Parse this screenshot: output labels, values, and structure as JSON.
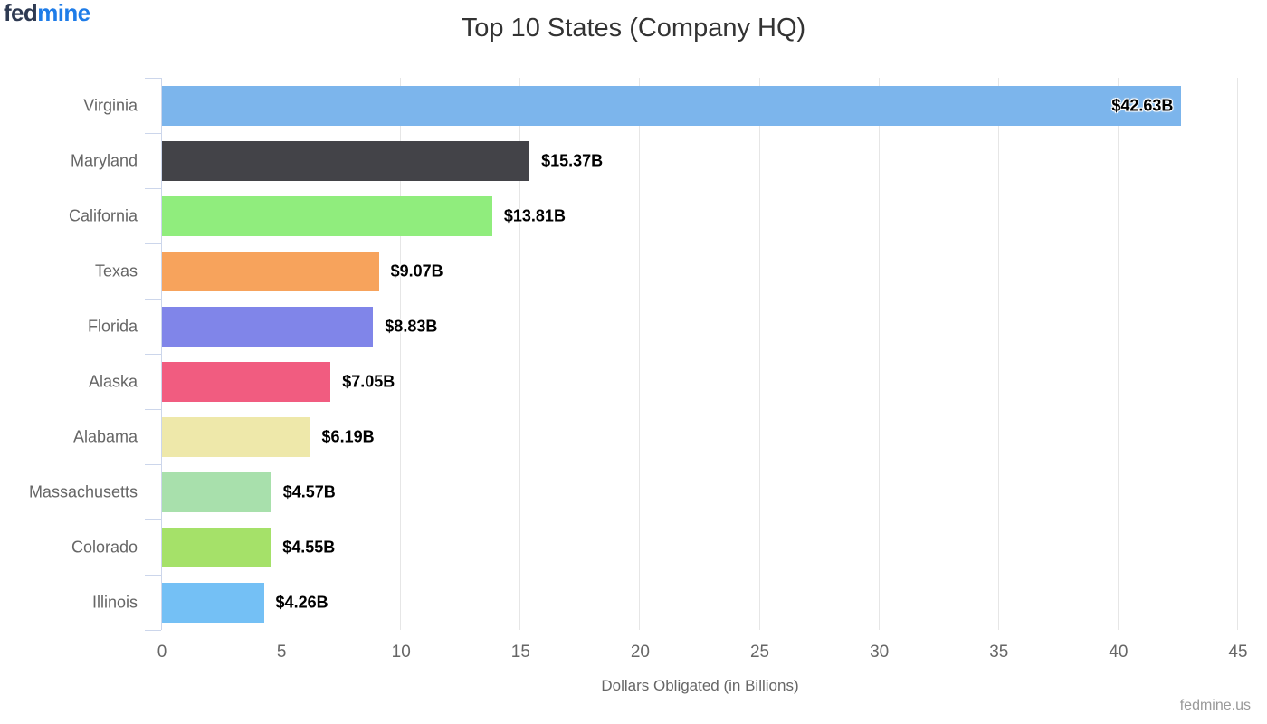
{
  "brand": {
    "part1": "fed",
    "part2": "mine",
    "part1_color": "#2e3a52",
    "part2_color": "#1e7ce8"
  },
  "chart_data": {
    "type": "bar",
    "orientation": "horizontal",
    "title": "Top 10 States (Company HQ)",
    "categories": [
      "Virginia",
      "Maryland",
      "California",
      "Texas",
      "Florida",
      "Alaska",
      "Alabama",
      "Massachusetts",
      "Colorado",
      "Illinois"
    ],
    "values": [
      42.63,
      15.37,
      13.81,
      9.07,
      8.83,
      7.05,
      6.19,
      4.57,
      4.55,
      4.26
    ],
    "value_labels": [
      "$42.63B",
      "$15.37B",
      "$13.81B",
      "$9.07B",
      "$8.83B",
      "$7.05B",
      "$6.19B",
      "$4.57B",
      "$4.55B",
      "$4.26B"
    ],
    "bar_colors": [
      "#7cb5ec",
      "#434348",
      "#90ed7d",
      "#f7a35c",
      "#8085e9",
      "#f15c80",
      "#eee8aa",
      "#a8e0ac",
      "#a5e169",
      "#74c0f5"
    ],
    "xlabel": "Dollars Obligated (in Billions)",
    "ylabel": "",
    "xlim": [
      0,
      45
    ],
    "x_ticks": [
      0,
      5,
      10,
      15,
      20,
      25,
      30,
      35,
      40,
      45
    ],
    "grid": "vertical gridlines only",
    "legend": "none",
    "credit": "fedmine.us",
    "colors": {
      "title_text": "#333333",
      "axis_text": "#666666",
      "axis_line": "#ccd6eb",
      "gridline": "#e6e6e6",
      "data_label_text": "#000000",
      "credit_text": "#999999",
      "background": "#ffffff"
    }
  }
}
